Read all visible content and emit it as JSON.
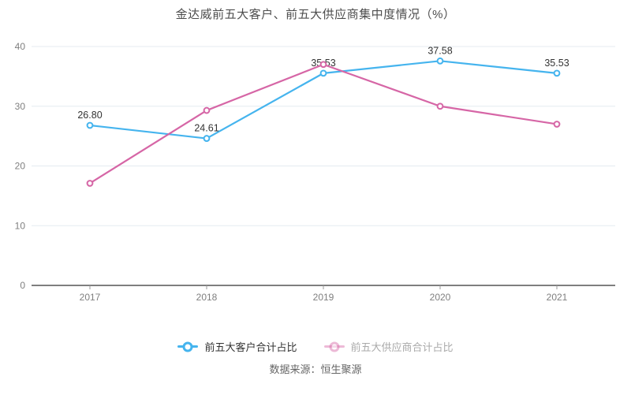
{
  "chart": {
    "title": "金达威前五大客户、前五大供应商集中度情况（%）",
    "source": "数据来源：恒生聚源"
  },
  "legend": {
    "items": [
      {
        "label": "前五大客户合计占比",
        "color": "#45b4ee",
        "label_color": "#333333",
        "muted": false
      },
      {
        "label": "前五大供应商合计占比",
        "color": "#d666a6",
        "label_color": "#aaaaaa",
        "muted": true
      }
    ]
  },
  "chart_data": {
    "type": "line",
    "title": "金达威前五大客户、前五大供应商集中度情况（%）",
    "categories": [
      "2017",
      "2018",
      "2019",
      "2020",
      "2021"
    ],
    "series": [
      {
        "name": "前五大客户合计占比",
        "color": "#45b4ee",
        "values": [
          26.8,
          24.61,
          35.53,
          37.58,
          35.53
        ],
        "labels": [
          "26.80",
          "24.61",
          "35.53",
          "37.58",
          "35.53"
        ],
        "show_labels": true
      },
      {
        "name": "前五大供应商合计占比",
        "color": "#d666a6",
        "values": [
          17.1,
          29.3,
          37.0,
          30.0,
          27.0
        ],
        "labels": [],
        "show_labels": false
      }
    ],
    "xlabel": "",
    "ylabel": "",
    "ylim": [
      0,
      40
    ],
    "yticks": [
      0,
      10,
      20,
      30,
      40
    ],
    "grid": true,
    "legend_position": "bottom",
    "colors": {
      "grid_line": "#e4ebf0",
      "axis_line": "#555555",
      "tick_text": "#7f7f7f",
      "value_label": "#333333",
      "background": "#ffffff"
    },
    "source": "数据来源：恒生聚源"
  }
}
